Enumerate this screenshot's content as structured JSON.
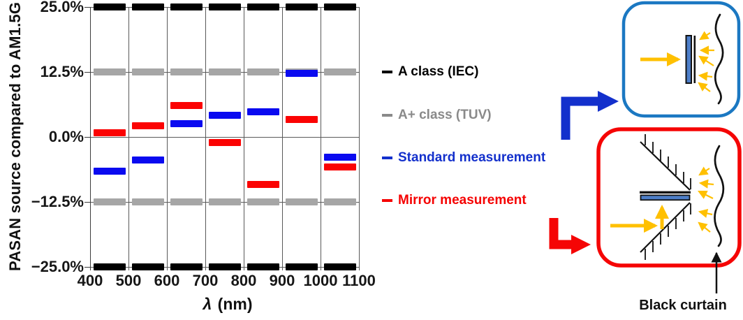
{
  "colors": {
    "grid": "#595959",
    "ink": "#111111",
    "box_blue": "#1b78c2",
    "box_red": "#f50505",
    "arrow_blue": "#1330cc",
    "arrow_red": "#f50505",
    "light": "#ffc000",
    "module": "#4d7ec8"
  },
  "chart_data": {
    "type": "bar",
    "title": "",
    "ylabel": "PASAN source compared to AM1.5G",
    "xlabel_lambda": "λ",
    "xlabel_unit": "(nm)",
    "ylim": [
      -25,
      25
    ],
    "grid": "both",
    "legend_position": "right-of-chart",
    "yticks": [
      {
        "value": 25,
        "label": "25.0%"
      },
      {
        "value": 12.5,
        "label": "12.5%"
      },
      {
        "value": 0,
        "label": "0.0%"
      },
      {
        "value": -12.5,
        "label": "−12.5%"
      },
      {
        "value": -25,
        "label": "−25.0%"
      }
    ],
    "xticks": [
      {
        "value": 400,
        "label": "400"
      },
      {
        "value": 500,
        "label": "500"
      },
      {
        "value": 600,
        "label": "600"
      },
      {
        "value": 700,
        "label": "700"
      },
      {
        "value": 800,
        "label": "800"
      },
      {
        "value": 900,
        "label": "900"
      },
      {
        "value": 1000,
        "label": "1000"
      },
      {
        "value": 1100,
        "label": "1100"
      }
    ],
    "bins": [
      [
        400,
        500
      ],
      [
        500,
        600
      ],
      [
        600,
        700
      ],
      [
        700,
        800
      ],
      [
        800,
        900
      ],
      [
        900,
        1000
      ],
      [
        1000,
        1100
      ]
    ],
    "series": [
      {
        "name": "A class (IEC)",
        "type": "limit-band",
        "color": "#000000",
        "legend_color": "#000000",
        "upper": 25,
        "lower": -25
      },
      {
        "name": "A+ class (TUV)",
        "type": "limit-band",
        "color": "#a6a6a6",
        "legend_color": "#8a8a8a",
        "upper": 12.5,
        "lower": -12.5
      },
      {
        "name": "Standard measurement",
        "type": "measurement",
        "color": "#0a0af0",
        "legend_color": "#1330cc",
        "values": [
          -6.6,
          -4.5,
          2.5,
          4.1,
          4.8,
          12.2,
          -3.9
        ]
      },
      {
        "name": "Mirror measurement",
        "type": "measurement",
        "color": "#fb0303",
        "legend_color": "#f50202",
        "values": [
          0.8,
          2.1,
          6.0,
          -1.1,
          -9.2,
          3.3,
          -5.8
        ]
      }
    ]
  },
  "diagram": {
    "curtain_label": "Black curtain"
  }
}
